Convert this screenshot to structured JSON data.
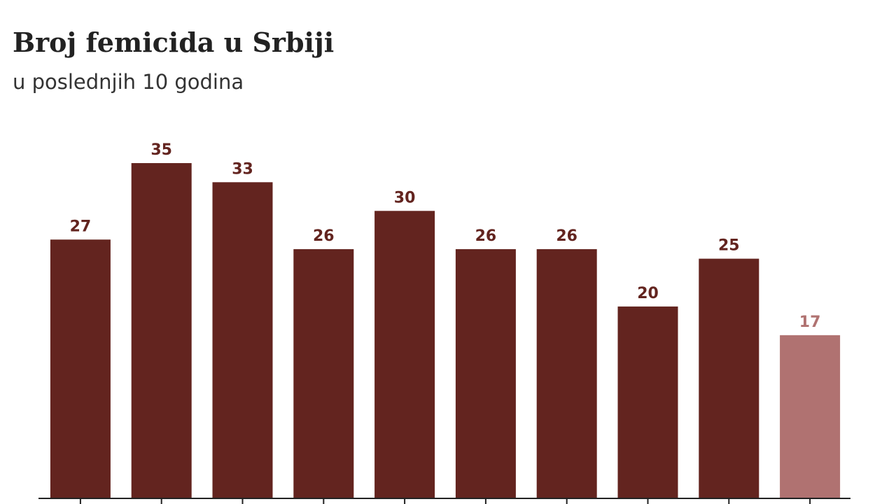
{
  "chart_data": {
    "type": "bar",
    "title": "Broj femicida u Srbiji",
    "subtitle": "u poslednjih 10 godina",
    "categories": [
      null,
      null,
      null,
      null,
      null,
      null,
      null,
      null,
      null,
      null
    ],
    "values": [
      27,
      35,
      33,
      26,
      30,
      26,
      26,
      20,
      25,
      17
    ],
    "colors": [
      "#63241f",
      "#63241f",
      "#63241f",
      "#63241f",
      "#63241f",
      "#63241f",
      "#63241f",
      "#63241f",
      "#63241f",
      "#b07271"
    ]
  }
}
